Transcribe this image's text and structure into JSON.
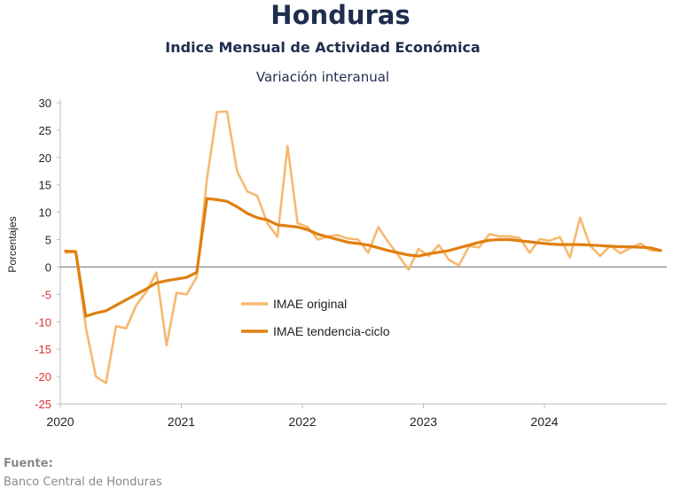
{
  "title": "Honduras",
  "subtitle": "Indice Mensual de  Actividad Económica",
  "subtitle2": "Variación interanual",
  "source": {
    "label": "Fuente:",
    "text": "Banco Central de Honduras"
  },
  "chart_data": {
    "type": "line",
    "ylabel": "Porcentajes",
    "ylim": [
      -25,
      30
    ],
    "yticks": [
      -25,
      -20,
      -15,
      -10,
      -5,
      0,
      5,
      10,
      15,
      20,
      25,
      30
    ],
    "xticks": [
      "2020",
      "2021",
      "2022",
      "2023",
      "2024"
    ],
    "x_start": "2020-01",
    "x_end": "2024-12",
    "grid": false,
    "legend": "center",
    "colors": {
      "original": "#f6b970",
      "trend": "#e07f0f",
      "negative_tick": "#e03030",
      "text": "#1f2d4e"
    },
    "x": [
      "2020-01",
      "2020-02",
      "2020-03",
      "2020-04",
      "2020-05",
      "2020-06",
      "2020-07",
      "2020-08",
      "2020-09",
      "2020-10",
      "2020-11",
      "2020-12",
      "2021-01",
      "2021-02",
      "2021-03",
      "2021-04",
      "2021-05",
      "2021-06",
      "2021-07",
      "2021-08",
      "2021-09",
      "2021-10",
      "2021-11",
      "2021-12",
      "2022-01",
      "2022-02",
      "2022-03",
      "2022-04",
      "2022-05",
      "2022-06",
      "2022-07",
      "2022-08",
      "2022-09",
      "2022-10",
      "2022-11",
      "2022-12",
      "2023-01",
      "2023-02",
      "2023-03",
      "2023-04",
      "2023-05",
      "2023-06",
      "2023-07",
      "2023-08",
      "2023-09",
      "2023-10",
      "2023-11",
      "2023-12",
      "2024-01",
      "2024-02",
      "2024-03",
      "2024-04",
      "2024-05",
      "2024-06",
      "2024-07",
      "2024-08",
      "2024-09",
      "2024-10",
      "2024-11",
      "2024-12"
    ],
    "series": [
      {
        "name": "IMAE original",
        "values": [
          2.6,
          2.8,
          -11.0,
          -20.0,
          -21.2,
          -10.8,
          -11.2,
          -7.0,
          -4.5,
          -1.0,
          -14.3,
          -4.7,
          -5.0,
          -1.8,
          16.0,
          28.3,
          28.4,
          17.5,
          13.8,
          13.0,
          8.0,
          5.5,
          22.1,
          8.0,
          7.3,
          5.0,
          5.6,
          5.8,
          5.2,
          5.0,
          2.6,
          7.3,
          4.5,
          2.1,
          -0.5,
          3.3,
          2.0,
          4.0,
          1.3,
          0.3,
          3.8,
          3.6,
          6.0,
          5.6,
          5.6,
          5.3,
          2.6,
          5.1,
          4.8,
          5.5,
          1.7,
          9.0,
          3.9,
          2.0,
          3.9,
          2.5,
          3.5,
          4.3,
          3.0,
          3.0
        ]
      },
      {
        "name": "IMAE tendencia-ciclo",
        "values": [
          2.9,
          2.8,
          -9.0,
          -8.4,
          -8.0,
          -7.0,
          -6.0,
          -5.0,
          -4.0,
          -2.9,
          -2.5,
          -2.2,
          -1.9,
          -1.0,
          12.5,
          12.3,
          12.0,
          11.0,
          9.8,
          9.0,
          8.6,
          7.7,
          7.5,
          7.3,
          6.8,
          6.0,
          5.5,
          5.0,
          4.5,
          4.3,
          4.0,
          3.5,
          3.0,
          2.6,
          2.2,
          2.0,
          2.4,
          2.7,
          3.0,
          3.5,
          4.0,
          4.5,
          4.9,
          5.0,
          5.0,
          4.8,
          4.6,
          4.4,
          4.2,
          4.1,
          4.1,
          4.1,
          4.0,
          3.9,
          3.8,
          3.7,
          3.7,
          3.6,
          3.5,
          3.0
        ]
      }
    ]
  }
}
